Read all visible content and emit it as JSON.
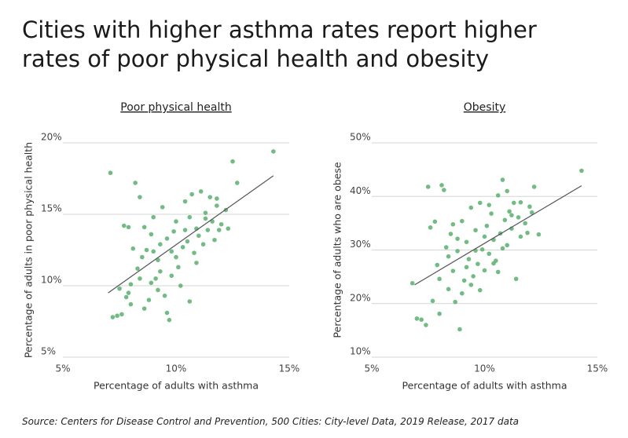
{
  "title": "Cities with higher asthma rates report higher rates of poor physical health and obesity",
  "source": "Source: Centers for Disease Control and Prevention, 500 Cities: City-level Data, 2019 Release, 2017 data",
  "chart_data": [
    {
      "type": "scatter",
      "subtitle": "Poor physical health",
      "xlabel": "Percentage of adults with asthma",
      "ylabel": "Percentage of adults in poor physical health",
      "color": "#5aaf6e",
      "grid": true,
      "xlim": [
        5,
        15
      ],
      "ylim": [
        5,
        20
      ],
      "xticks": [
        {
          "value": 5,
          "label": "5%"
        },
        {
          "value": 10,
          "label": "10%"
        },
        {
          "value": 15,
          "label": "15%"
        }
      ],
      "yticks": [
        {
          "value": 5,
          "label": "5%"
        },
        {
          "value": 10,
          "label": "10%"
        },
        {
          "value": 15,
          "label": "15%"
        },
        {
          "value": 20,
          "label": "20%"
        }
      ],
      "x": [
        7.1,
        7.4,
        7.2,
        7.6,
        7.8,
        7.9,
        8.0,
        7.9,
        7.7,
        8.2,
        8.4,
        8.5,
        8.3,
        8.6,
        8.8,
        8.7,
        8.9,
        9.0,
        9.1,
        9.2,
        9.3,
        9.4,
        9.5,
        9.6,
        9.7,
        9.8,
        9.9,
        10.0,
        10.1,
        10.2,
        10.3,
        10.4,
        10.5,
        10.6,
        10.7,
        10.8,
        10.9,
        11.0,
        11.1,
        11.2,
        11.3,
        11.4,
        11.5,
        11.6,
        11.7,
        11.8,
        11.9,
        12.0,
        12.2,
        12.3,
        12.5,
        12.7,
        14.3,
        8.1,
        8.4,
        8.9,
        9.3,
        9.6,
        10.0,
        10.4,
        10.9,
        11.3,
        9.0,
        8.6,
        9.8,
        10.6,
        11.8,
        7.5,
        8.0,
        9.2
      ],
      "y": [
        17.9,
        7.9,
        7.8,
        8.0,
        9.2,
        9.5,
        10.1,
        14.1,
        14.2,
        17.2,
        16.2,
        12.0,
        11.2,
        8.4,
        9.0,
        12.5,
        13.6,
        14.8,
        10.5,
        11.8,
        12.9,
        15.5,
        9.3,
        8.1,
        7.6,
        12.4,
        13.8,
        14.5,
        11.3,
        10.0,
        12.7,
        15.9,
        13.1,
        8.9,
        16.4,
        12.3,
        14.0,
        13.5,
        16.6,
        12.9,
        15.1,
        13.9,
        16.2,
        14.5,
        13.2,
        15.6,
        13.9,
        14.3,
        15.3,
        14.0,
        18.7,
        17.2,
        19.4,
        12.6,
        10.5,
        10.2,
        11.0,
        13.3,
        12.0,
        13.9,
        11.6,
        14.7,
        12.4,
        14.1,
        10.7,
        14.8,
        16.1,
        9.8,
        8.7,
        9.7
      ],
      "trend": {
        "x": [
          7.0,
          14.3
        ],
        "y": [
          9.5,
          17.7
        ]
      }
    },
    {
      "type": "scatter",
      "subtitle": "Obesity",
      "xlabel": "Percentage of adults with asthma",
      "ylabel": "Percentage of adults who are obese",
      "color": "#5aaf6e",
      "grid": true,
      "xlim": [
        5,
        15
      ],
      "ylim": [
        10,
        50
      ],
      "xticks": [
        {
          "value": 5,
          "label": "5%"
        },
        {
          "value": 10,
          "label": "10%"
        },
        {
          "value": 15,
          "label": "15%"
        }
      ],
      "yticks": [
        {
          "value": 10,
          "label": "10%"
        },
        {
          "value": 20,
          "label": "20%"
        },
        {
          "value": 30,
          "label": "30%"
        },
        {
          "value": 40,
          "label": "40%"
        },
        {
          "value": 50,
          "label": "50%"
        }
      ],
      "x": [
        6.8,
        7.0,
        7.2,
        7.4,
        7.5,
        7.6,
        7.8,
        7.9,
        8.0,
        8.1,
        8.2,
        8.3,
        8.4,
        8.5,
        8.6,
        8.7,
        8.8,
        8.9,
        9.0,
        9.1,
        9.2,
        9.3,
        9.4,
        9.5,
        9.6,
        9.7,
        9.8,
        9.9,
        10.0,
        10.1,
        10.2,
        10.3,
        10.4,
        10.5,
        10.6,
        10.7,
        10.8,
        10.9,
        11.0,
        11.1,
        11.2,
        11.3,
        11.4,
        11.5,
        11.6,
        11.8,
        11.9,
        12.0,
        12.2,
        12.4,
        14.3,
        8.0,
        8.4,
        8.8,
        9.2,
        9.6,
        10.0,
        10.4,
        10.8,
        11.2,
        9.0,
        9.4,
        10.2,
        11.6,
        7.7,
        8.6,
        9.8,
        10.6,
        11.0,
        12.1
      ],
      "y": [
        23.8,
        17.2,
        17.0,
        16.0,
        41.8,
        34.2,
        35.3,
        27.2,
        18.1,
        42.1,
        41.2,
        30.5,
        22.7,
        33.0,
        26.1,
        20.3,
        29.8,
        15.2,
        35.4,
        24.3,
        31.5,
        28.3,
        37.9,
        25.1,
        33.7,
        27.4,
        38.8,
        30.1,
        26.2,
        34.5,
        29.3,
        36.8,
        31.9,
        28.0,
        40.2,
        33.1,
        43.1,
        35.6,
        30.9,
        37.2,
        34.0,
        38.8,
        24.6,
        36.1,
        32.5,
        35.0,
        33.2,
        38.1,
        41.8,
        32.9,
        44.8,
        24.6,
        28.8,
        32.1,
        26.8,
        29.9,
        32.5,
        27.5,
        30.3,
        36.5,
        21.9,
        23.5,
        38.4,
        38.9,
        20.5,
        34.8,
        22.5,
        25.9,
        41.0,
        37.0
      ],
      "trend": {
        "x": [
          6.9,
          14.3
        ],
        "y": [
          23.5,
          42.0
        ]
      }
    }
  ]
}
